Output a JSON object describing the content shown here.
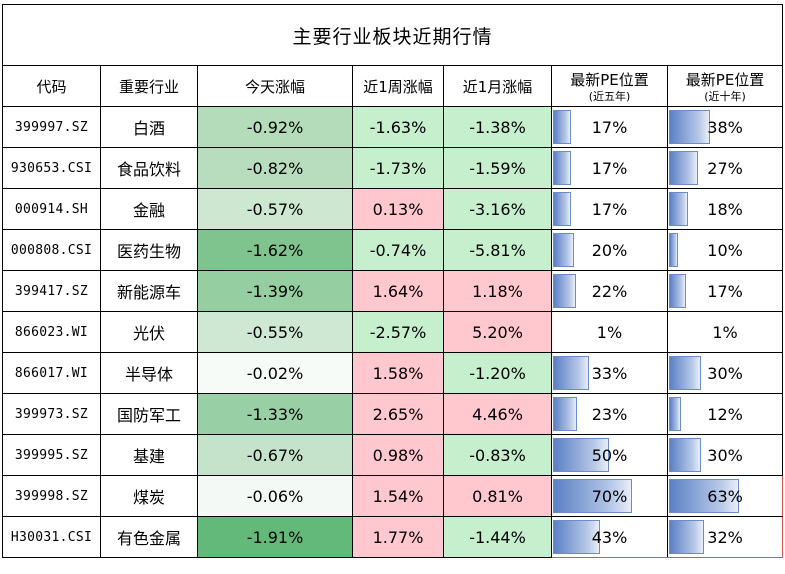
{
  "title": "主要行业板块近期行情",
  "headers": {
    "code": "代码",
    "industry": "重要行业",
    "today": "今天涨幅",
    "week": "近1周涨幅",
    "month": "近1月涨幅",
    "pe5_main": "最新PE位置",
    "pe5_sub": "(近五年)",
    "pe10_main": "最新PE位置",
    "pe10_sub": "(近十年)"
  },
  "colors": {
    "positive_text": "#9c0006",
    "negative_text": "#006100",
    "positive_fill": "#ffc7ce",
    "negative_fill": "#c6efce",
    "highlight_border": "#d9534f",
    "pe_bar": "#5b80c5"
  },
  "rows": [
    {
      "code": "399997.SZ",
      "name": "白酒",
      "today": "-0.92%",
      "today_fill": "#b4dcba",
      "week": "-1.63%",
      "month": "-1.38%",
      "pe5": "17%",
      "pe5_val": 0.17,
      "pe10": "38%",
      "pe10_val": 0.38
    },
    {
      "code": "930653.CSI",
      "name": "食品饮料",
      "today": "-0.82%",
      "today_fill": "#b8ddbe",
      "week": "-1.73%",
      "month": "-1.59%",
      "pe5": "17%",
      "pe5_val": 0.17,
      "pe10": "27%",
      "pe10_val": 0.27
    },
    {
      "code": "000914.SH",
      "name": "金融",
      "today": "-0.57%",
      "today_fill": "#cde7d1",
      "week": "0.13%",
      "month": "-3.16%",
      "pe5": "17%",
      "pe5_val": 0.17,
      "pe10": "18%",
      "pe10_val": 0.18
    },
    {
      "code": "000808.CSI",
      "name": "医药生物",
      "today": "-1.62%",
      "today_fill": "#7fc48f",
      "week": "-0.74%",
      "month": "-5.81%",
      "pe5": "20%",
      "pe5_val": 0.2,
      "pe10": "10%",
      "pe10_val": 0.1
    },
    {
      "code": "399417.SZ",
      "name": "新能源车",
      "today": "-1.39%",
      "today_fill": "#94cea1",
      "week": "1.64%",
      "month": "1.18%",
      "pe5": "22%",
      "pe5_val": 0.22,
      "pe10": "17%",
      "pe10_val": 0.17
    },
    {
      "code": "866023.WI",
      "name": "光伏",
      "today": "-0.55%",
      "today_fill": "#cfe8d3",
      "week": "-2.57%",
      "month": "5.20%",
      "pe5": "1%",
      "pe5_val": 0.01,
      "pe10": "1%",
      "pe10_val": 0.01
    },
    {
      "code": "866017.WI",
      "name": "半导体",
      "today": "-0.02%",
      "today_fill": "#f7fbf7",
      "week": "1.58%",
      "month": "-1.20%",
      "pe5": "33%",
      "pe5_val": 0.33,
      "pe10": "30%",
      "pe10_val": 0.3
    },
    {
      "code": "399973.SZ",
      "name": "国防军工",
      "today": "-1.33%",
      "today_fill": "#98cfa4",
      "week": "2.65%",
      "month": "4.46%",
      "pe5": "23%",
      "pe5_val": 0.23,
      "pe10": "12%",
      "pe10_val": 0.12
    },
    {
      "code": "399995.SZ",
      "name": "基建",
      "today": "-0.67%",
      "today_fill": "#c5e3ca",
      "week": "0.98%",
      "month": "-0.83%",
      "pe5": "50%",
      "pe5_val": 0.5,
      "pe10": "30%",
      "pe10_val": 0.3
    },
    {
      "code": "399998.SZ",
      "name": "煤炭",
      "today": "-0.06%",
      "today_fill": "#f3f9f4",
      "week": "1.54%",
      "month": "0.81%",
      "pe5": "70%",
      "pe5_val": 0.7,
      "pe10": "63%",
      "pe10_val": 0.63
    },
    {
      "code": "H30031.CSI",
      "name": "有色金属",
      "today": "-1.91%",
      "today_fill": "#63b97a",
      "week": "1.77%",
      "month": "-1.44%",
      "pe5": "43%",
      "pe5_val": 0.43,
      "pe10": "32%",
      "pe10_val": 0.32
    }
  ]
}
